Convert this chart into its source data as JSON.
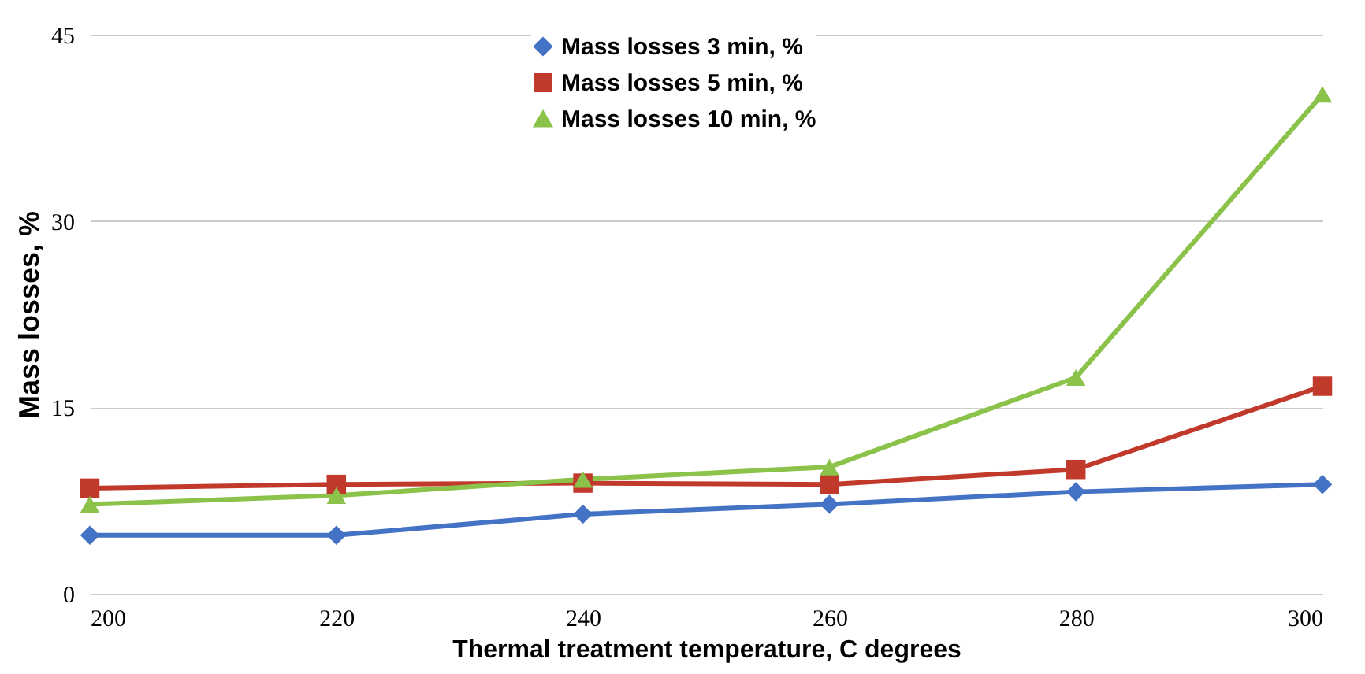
{
  "chart_data": {
    "type": "line",
    "xlabel": "Thermal treatment temperature, C degrees",
    "ylabel": "Mass losses, %",
    "x": [
      200,
      220,
      240,
      260,
      280,
      300
    ],
    "xlim": [
      200,
      300
    ],
    "xticks": [
      200,
      220,
      240,
      260,
      280,
      300
    ],
    "ylim": [
      0,
      45
    ],
    "yticks": [
      0,
      15,
      30,
      45
    ],
    "grid": "y",
    "legend": "top",
    "series": [
      {
        "name": "Mass losses 3 min, %",
        "color": "#4472c4",
        "marker": "diamond",
        "values": [
          4.7,
          4.7,
          6.4,
          7.2,
          8.2,
          8.8
        ]
      },
      {
        "name": "Mass losses 5 min, %",
        "color": "#c0392b",
        "marker": "square",
        "values": [
          8.5,
          8.8,
          8.9,
          8.8,
          10.0,
          16.7
        ]
      },
      {
        "name": "Mass losses 10 min, %",
        "color": "#8bc34a",
        "marker": "triangle",
        "values": [
          7.2,
          7.9,
          9.2,
          10.2,
          17.4,
          40.2
        ]
      }
    ]
  }
}
